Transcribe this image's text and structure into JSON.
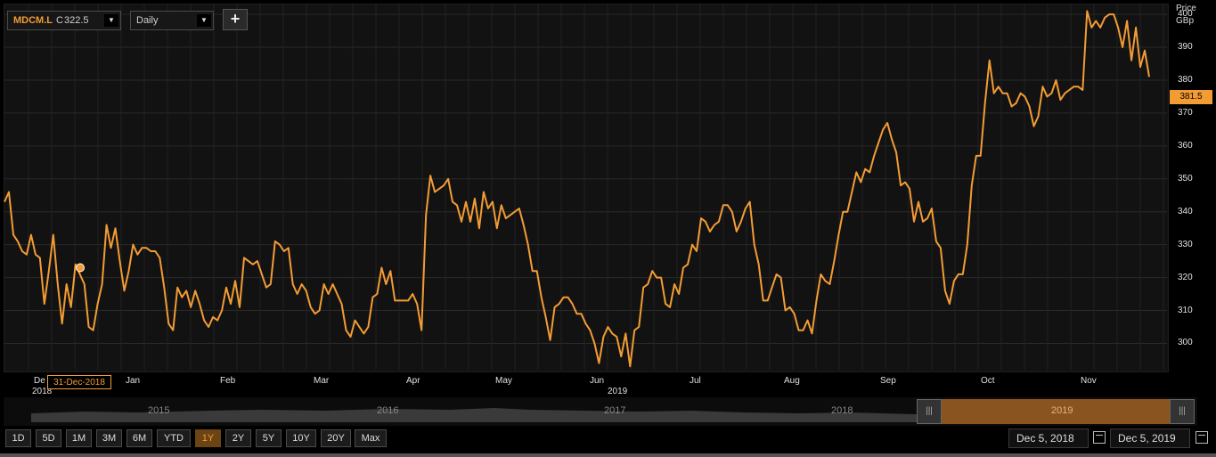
{
  "toolbar": {
    "symbol": "MDCM.L",
    "close_prefix": "C",
    "close_value": "322.5",
    "interval": "Daily",
    "add_label": "+"
  },
  "y_axis": {
    "title_line1": "Price",
    "title_line2": "GBp"
  },
  "last_price": "381.5",
  "hover_date": "31-Dec-2018",
  "x_labels": {
    "dec": "De",
    "dec_year": "2018",
    "jan": "Jan",
    "feb": "Feb",
    "mar": "Mar",
    "apr": "Apr",
    "may": "May",
    "jun": "Jun",
    "jun_year": "2019",
    "jul": "Jul",
    "aug": "Aug",
    "sep": "Sep",
    "oct": "Oct",
    "nov": "Nov"
  },
  "navigator": {
    "years": [
      "2015",
      "2016",
      "2017",
      "2018",
      "2019"
    ]
  },
  "ranges": [
    "1D",
    "5D",
    "1M",
    "3M",
    "6M",
    "YTD",
    "1Y",
    "2Y",
    "5Y",
    "10Y",
    "20Y",
    "Max"
  ],
  "active_range": "1Y",
  "date_from": "Dec 5, 2018",
  "date_to": "Dec 5, 2019",
  "colors": {
    "line": "#f39c34",
    "background": "#000000",
    "plot": "#121212",
    "grid": "#2a2a2a"
  },
  "chart_data": {
    "type": "line",
    "series": [
      {
        "name": "MDCM.L",
        "values": [
          343,
          346,
          333,
          331,
          328,
          327,
          333,
          327,
          326,
          312,
          322,
          333,
          318,
          306,
          318,
          311,
          324,
          321,
          318,
          305,
          304,
          312,
          318,
          336,
          329,
          335,
          325,
          316,
          322,
          330,
          327,
          329,
          329,
          328,
          328,
          326,
          317,
          306,
          304,
          317,
          314,
          316,
          311,
          316,
          312,
          307,
          305,
          308,
          307,
          310,
          317,
          312,
          319,
          311,
          326,
          325,
          324,
          325,
          321,
          317,
          318,
          331,
          330,
          328,
          329,
          318,
          315,
          318,
          316,
          311,
          309,
          310,
          318,
          315,
          318,
          315,
          312,
          304,
          302,
          307,
          305,
          303,
          305,
          314,
          315,
          323,
          318,
          322,
          313,
          313,
          313,
          313,
          315,
          312,
          304,
          339,
          351,
          346,
          347,
          348,
          350,
          343,
          342,
          337,
          343,
          337,
          344,
          335,
          346,
          341,
          343,
          335,
          342,
          338,
          339,
          340,
          341,
          336,
          330,
          322,
          322,
          314,
          308,
          301,
          311,
          312,
          314,
          314,
          312,
          309,
          309,
          306,
          304,
          300,
          294,
          302,
          305,
          303,
          302,
          296,
          303,
          293,
          304,
          305,
          317,
          318,
          322,
          320,
          320,
          312,
          311,
          318,
          315,
          323,
          324,
          330,
          328,
          338,
          337,
          334,
          336,
          337,
          342,
          342,
          340,
          334,
          337,
          341,
          343,
          330,
          324,
          313,
          313,
          317,
          321,
          320,
          310,
          311,
          309,
          304,
          304,
          307,
          303,
          313,
          321,
          319,
          318,
          325,
          333,
          340,
          340,
          346,
          352,
          349,
          353,
          352,
          357,
          361,
          365,
          367,
          362,
          358,
          348,
          349,
          347,
          337,
          343,
          337,
          338,
          341,
          331,
          329,
          316,
          312,
          319,
          321,
          321,
          330,
          348,
          357,
          357,
          373,
          386,
          376,
          378,
          376,
          376,
          372,
          373,
          376,
          375,
          372,
          366,
          369,
          378,
          375,
          376,
          380,
          374,
          376,
          377,
          378,
          378,
          377,
          401,
          396,
          398,
          396,
          399,
          400,
          400,
          396,
          390,
          398,
          386,
          396,
          384,
          389,
          381
        ]
      }
    ],
    "y_ticks": [
      300,
      310,
      320,
      330,
      340,
      350,
      360,
      370,
      380,
      390,
      400
    ],
    "ylim": [
      292,
      403
    ],
    "marker_value": 323,
    "ylabel": "Price GBp"
  }
}
